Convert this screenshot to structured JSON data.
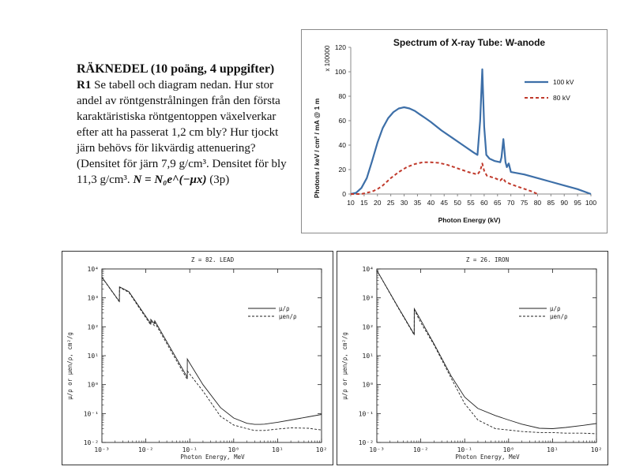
{
  "task": {
    "heading": "RÄKNEDEL (10 poäng, 4 uppgifter)",
    "problem_id": "R1",
    "text": " Se tabell och diagram nedan. Hur stor andel av röntgenstrålningen från den första karaktäristiska röntgentoppen växelverkar efter att ha passerat 1,2 cm bly? Hur tjockt järn behövs för likvärdig attenuering? (Densitet för järn 7,9 g/cm³. Densitet för bly 11,3 g/cm³. ",
    "formula": "N = N₀e^(−μx)",
    "points": " (3p)"
  },
  "chart_data": [
    {
      "type": "line",
      "title": "Spectrum of X-ray Tube: W-anode",
      "xlabel": "Photon Energy (kV)",
      "ylabel": "Photons / keV / cm² / mA @ 1 m",
      "y_multiplier": "x 100000",
      "xlim": [
        10,
        100
      ],
      "ylim": [
        0,
        120
      ],
      "x_ticks": [
        "10",
        "15",
        "20",
        "25",
        "30",
        "35",
        "40",
        "45",
        "50",
        "55",
        "60",
        "65",
        "70",
        "75",
        "80",
        "85",
        "90",
        "95",
        "100"
      ],
      "y_ticks": [
        "0",
        "20",
        "40",
        "60",
        "80",
        "100",
        "120"
      ],
      "legend": [
        "100 kV",
        "80 kV"
      ],
      "series": [
        {
          "name": "100 kV",
          "color": "#3d6fa8",
          "x": [
            10,
            12,
            14,
            16,
            18,
            20,
            22,
            24,
            26,
            28,
            30,
            32,
            34,
            36,
            38,
            40,
            44,
            48,
            52,
            56,
            57.5,
            58.5,
            59.3,
            60,
            60.8,
            62,
            64,
            66,
            66.5,
            67.2,
            68,
            68.5,
            69.2,
            70,
            75,
            80,
            85,
            90,
            95,
            100
          ],
          "y": [
            0,
            1,
            5,
            13,
            27,
            42,
            54,
            62,
            67,
            70,
            71,
            70,
            68,
            65,
            62,
            59,
            52,
            46,
            40,
            34,
            32,
            60,
            102,
            55,
            32,
            29,
            27,
            26,
            30,
            45,
            26,
            22,
            25,
            18,
            16,
            13,
            10,
            7,
            4,
            0
          ]
        },
        {
          "name": "80 kV",
          "color": "#c0392b",
          "x": [
            10,
            14,
            16,
            18,
            20,
            22,
            25,
            28,
            31,
            34,
            37,
            40,
            43,
            46,
            50,
            54,
            57.5,
            58.5,
            59.3,
            60,
            61,
            64,
            66,
            67,
            68,
            70,
            74,
            78,
            80
          ],
          "y": [
            0,
            0,
            1,
            2,
            4,
            7,
            13,
            18,
            22,
            24.5,
            26,
            26,
            25.5,
            24,
            21,
            18,
            16,
            19,
            25,
            19,
            15,
            13,
            11,
            13,
            10,
            8,
            5,
            2,
            0
          ]
        }
      ]
    },
    {
      "type": "line",
      "title": "Z = 82.  LEAD",
      "xlabel": "Photon Energy, MeV",
      "ylabel": "μ/ρ or μen/ρ, cm²/g",
      "x_scale": "log",
      "y_scale": "log",
      "xlim": [
        0.001,
        100
      ],
      "ylim": [
        0.01,
        10000
      ],
      "x_ticks": [
        "10⁻³",
        "10⁻²",
        "10⁻¹",
        "10⁰",
        "10¹",
        "10²"
      ],
      "y_ticks": [
        "10⁴",
        "10³",
        "10²",
        "10¹",
        "10⁰",
        "10⁻¹",
        "10⁻²"
      ],
      "legend": [
        "μ/ρ",
        "μen/ρ"
      ],
      "series": [
        {
          "name": "μ/ρ",
          "style": "solid",
          "x": [
            0.001,
            0.0025,
            0.00252,
            0.0041,
            0.01295,
            0.013,
            0.0155,
            0.016,
            0.088,
            0.0881,
            0.1,
            0.2,
            0.5,
            1,
            2,
            3,
            4,
            5,
            10,
            20,
            50,
            100
          ],
          "y": [
            5200,
            750,
            2400,
            1650,
            130,
            180,
            130,
            160,
            1.8,
            7.7,
            5.5,
            1.0,
            0.16,
            0.07,
            0.046,
            0.042,
            0.042,
            0.043,
            0.05,
            0.06,
            0.077,
            0.093
          ]
        },
        {
          "name": "μen/ρ",
          "style": "dashed",
          "x": [
            0.001,
            0.0025,
            0.00252,
            0.0041,
            0.01295,
            0.013,
            0.0155,
            0.016,
            0.088,
            0.0881,
            0.1,
            0.2,
            0.5,
            1,
            2,
            3,
            5,
            10,
            20,
            50,
            100
          ],
          "y": [
            5100,
            730,
            2300,
            1550,
            115,
            160,
            110,
            140,
            1.5,
            3.0,
            2.3,
            0.6,
            0.08,
            0.04,
            0.03,
            0.026,
            0.026,
            0.029,
            0.032,
            0.031,
            0.027
          ]
        }
      ]
    },
    {
      "type": "line",
      "title": "Z = 26.  IRON",
      "xlabel": "Photon Energy, MeV",
      "ylabel": "μ/ρ or μen/ρ, cm²/g",
      "x_scale": "log",
      "y_scale": "log",
      "xlim": [
        0.001,
        100
      ],
      "ylim": [
        0.01,
        10000
      ],
      "x_ticks": [
        "10⁻³",
        "10⁻²",
        "10⁻¹",
        "10⁰",
        "10¹",
        "10²"
      ],
      "y_ticks": [
        "10⁴",
        "10³",
        "10²",
        "10¹",
        "10⁰",
        "10⁻¹",
        "10⁻²"
      ],
      "legend": [
        "μ/ρ",
        "μen/ρ"
      ],
      "series": [
        {
          "name": "μ/ρ",
          "style": "solid",
          "x": [
            0.001,
            0.003,
            0.0071,
            0.00712,
            0.01,
            0.02,
            0.05,
            0.1,
            0.2,
            0.5,
            1,
            2,
            5,
            10,
            20,
            50,
            100
          ],
          "y": [
            9000,
            500,
            55,
            420,
            170,
            26,
            1.9,
            0.37,
            0.15,
            0.085,
            0.06,
            0.043,
            0.031,
            0.03,
            0.033,
            0.039,
            0.045
          ]
        },
        {
          "name": "μen/ρ",
          "style": "dashed",
          "x": [
            0.001,
            0.003,
            0.0071,
            0.00712,
            0.01,
            0.02,
            0.05,
            0.1,
            0.2,
            0.5,
            1,
            2,
            5,
            10,
            20,
            50,
            100
          ],
          "y": [
            9000,
            480,
            52,
            380,
            140,
            24,
            1.6,
            0.22,
            0.06,
            0.03,
            0.027,
            0.024,
            0.022,
            0.022,
            0.021,
            0.021,
            0.02
          ]
        }
      ]
    }
  ]
}
